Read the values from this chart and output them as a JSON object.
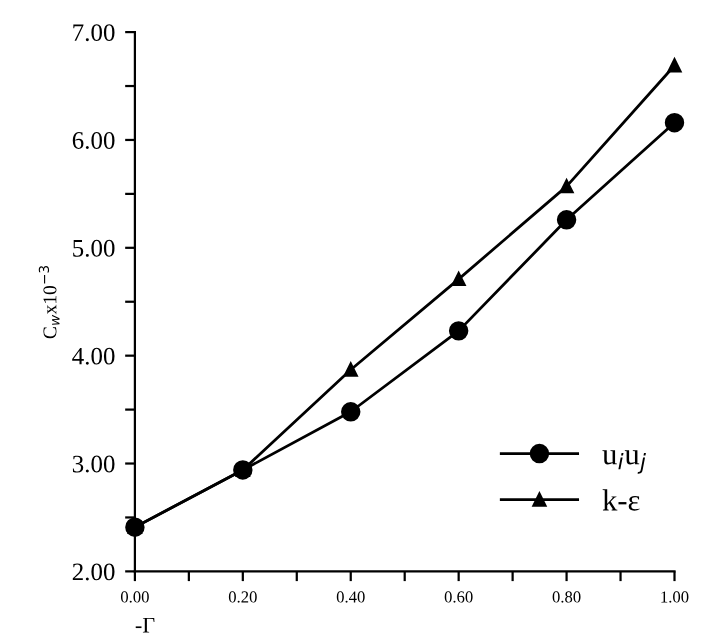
{
  "chart_data": {
    "type": "line",
    "xlabel": "-Γ",
    "ylabel": "C$_{w}$x10$^{−3}$",
    "x": [
      0,
      0.2,
      0.4,
      0.6,
      0.8,
      1.0
    ],
    "series": [
      {
        "name": "u$_{i}$u$_{j}$",
        "color": "#000000",
        "marker": "circle",
        "values": [
          2.41,
          2.94,
          3.48,
          4.23,
          5.26,
          6.16
        ]
      },
      {
        "name": "k-ε",
        "color": "#000000",
        "marker": "triangle",
        "values": [
          2.41,
          2.94,
          3.87,
          4.71,
          5.57,
          6.69
        ]
      }
    ],
    "xlim": [
      0,
      1
    ],
    "ylim": [
      2,
      7
    ],
    "xticks": [
      {
        "value": 0,
        "label": "0.00"
      },
      {
        "value": 0.1,
        "label": null
      },
      {
        "value": 0.2,
        "label": "0.20"
      },
      {
        "value": 0.3,
        "label": null
      },
      {
        "value": 0.4,
        "label": "0.40"
      },
      {
        "value": 0.5,
        "label": null
      },
      {
        "value": 0.6,
        "label": "0.60"
      },
      {
        "value": 0.7,
        "label": null
      },
      {
        "value": 0.8,
        "label": "0.80"
      },
      {
        "value": 0.9,
        "label": null
      },
      {
        "value": 1.0,
        "label": "1.00"
      }
    ],
    "yticks": [
      {
        "value": 2,
        "label": "2.00"
      },
      {
        "value": 2.5,
        "label": null
      },
      {
        "value": 3,
        "label": "3.00"
      },
      {
        "value": 3.5,
        "label": null
      },
      {
        "value": 4,
        "label": "4.00"
      },
      {
        "value": 4.5,
        "label": null
      },
      {
        "value": 5,
        "label": "5.00"
      },
      {
        "value": 5.5,
        "label": null
      },
      {
        "value": 6,
        "label": "6.00"
      },
      {
        "value": 6.5,
        "label": null
      },
      {
        "value": 7,
        "label": "7.00"
      }
    ],
    "legend": "bottom right",
    "grid": false,
    "line_style": "solid"
  }
}
